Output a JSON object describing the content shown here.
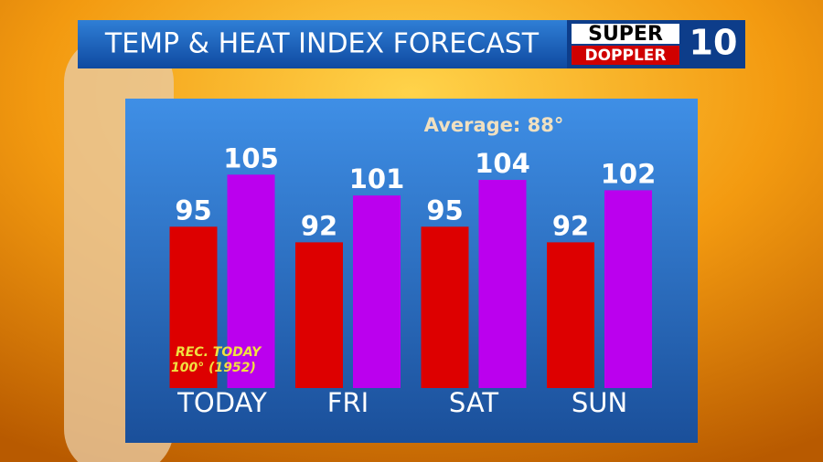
{
  "chart_data": {
    "type": "bar",
    "title": "TEMP & HEAT INDEX FORECAST",
    "logo": {
      "top": "SUPER",
      "bottom": "DOPPLER",
      "number": "10"
    },
    "annotation": "Average: 88°",
    "record": {
      "label": "REC. TODAY",
      "value": "100° (1952)"
    },
    "categories": [
      "TODAY",
      "FRI",
      "SAT",
      "SUN"
    ],
    "series": [
      {
        "color": "#dd0000",
        "values": [
          95,
          92,
          95,
          92
        ]
      },
      {
        "color": "#bb00ee",
        "values": [
          105,
          101,
          104,
          102
        ]
      }
    ],
    "ylim": [
      64,
      110
    ]
  }
}
